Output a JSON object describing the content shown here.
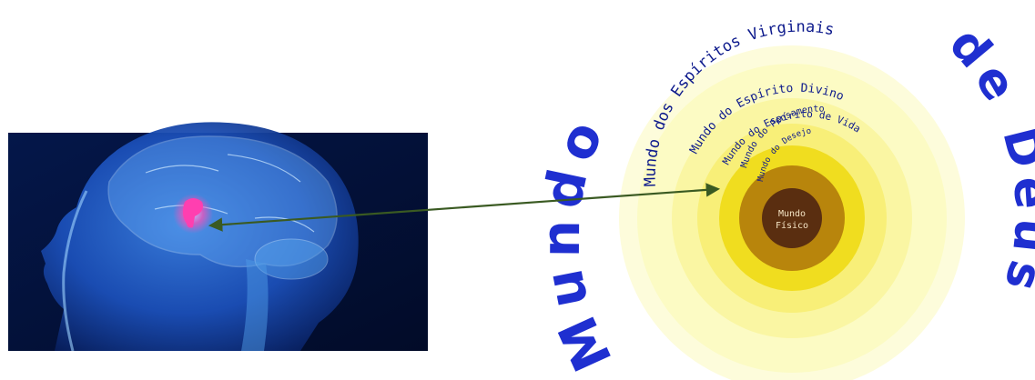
{
  "diagram": {
    "outer_arc_left": "Mundo",
    "outer_arc_right": "de Deus",
    "rings": [
      {
        "label": "Mundo dos Espíritos Virginais",
        "color": "#fcfbc4"
      },
      {
        "label": "Mundo do Espírito Divino",
        "color": "#faf6a3"
      },
      {
        "label": "Mundo do Espírito de Vida",
        "color": "#f8ef78"
      },
      {
        "label": "Mundo do Pensamento",
        "color": "#f0dd1f"
      },
      {
        "label": "Mundo do Desejo",
        "color": "#b8850c"
      }
    ],
    "center": {
      "line1": "Mundo",
      "line2": "Físico",
      "color": "#5a2e10"
    },
    "arrow_color": "#3a5a22",
    "illustration": "brain-head-illustration"
  }
}
